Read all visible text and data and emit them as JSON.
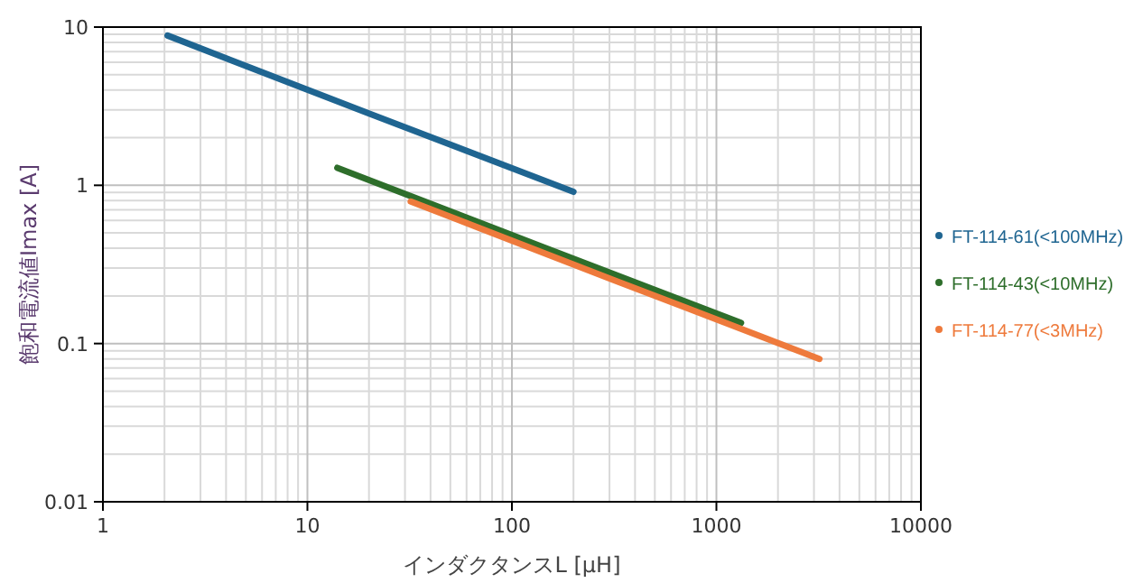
{
  "chart_data": {
    "type": "line",
    "xlabel": "インダクタンスL [μH]",
    "ylabel": "飽和電流値Imax [A]",
    "log": "xy",
    "grid": true,
    "legend": "right",
    "line_style": "solid",
    "xlim": [
      1,
      10000
    ],
    "xticks": [
      1,
      10,
      100,
      1000,
      10000
    ],
    "ylim": [
      0.01,
      10
    ],
    "yticks": [
      0.01,
      0.1,
      1,
      10
    ],
    "series": [
      {
        "name": "FT-114-61(<100MHz)",
        "color": "#1f6591",
        "x": [
          2.07,
          20,
          200
        ],
        "values": [
          8.84,
          2.84,
          0.91
        ]
      },
      {
        "name": "FT-114-43(<10MHz)",
        "color": "#2e6e2b",
        "x": [
          14,
          140,
          1320
        ],
        "values": [
          1.29,
          0.41,
          0.135
        ]
      },
      {
        "name": "FT-114-77(<3MHz)",
        "color": "#ee7a3c",
        "x": [
          32,
          320,
          3190
        ],
        "values": [
          0.79,
          0.25,
          0.08
        ]
      }
    ]
  }
}
